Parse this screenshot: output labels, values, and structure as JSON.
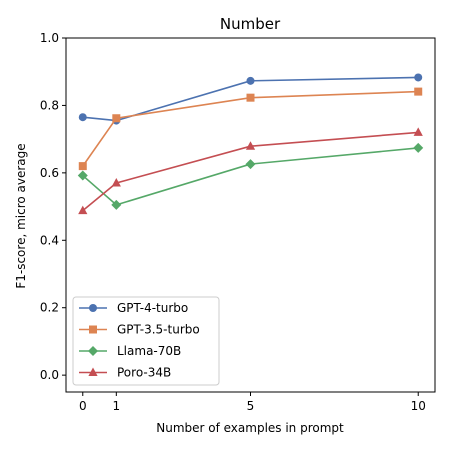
{
  "chart_data": {
    "type": "line",
    "title": "Number",
    "xlabel": "Number of examples in prompt",
    "ylabel": "F1-score, micro average",
    "x": [
      0,
      1,
      5,
      10
    ],
    "xticks": [
      "0",
      "1",
      "5",
      "10"
    ],
    "xlim": [
      -0.5,
      10.5
    ],
    "ylim": [
      -0.05,
      1.0
    ],
    "yticks": [
      "0.0",
      "0.2",
      "0.4",
      "0.6",
      "0.8",
      "1.0"
    ],
    "grid": false,
    "legend_position": "lower-left",
    "series": [
      {
        "name": "GPT-4-turbo",
        "values": [
          0.765,
          0.755,
          0.873,
          0.883
        ],
        "color": "#4c72b0",
        "marker": "circle"
      },
      {
        "name": "GPT-3.5-turbo",
        "values": [
          0.62,
          0.762,
          0.823,
          0.841
        ],
        "color": "#dd8452",
        "marker": "square"
      },
      {
        "name": "Llama-70B",
        "values": [
          0.592,
          0.505,
          0.626,
          0.674
        ],
        "color": "#55a868",
        "marker": "diamond"
      },
      {
        "name": "Poro-34B",
        "values": [
          0.488,
          0.57,
          0.679,
          0.72
        ],
        "color": "#c44e52",
        "marker": "triangle"
      }
    ]
  }
}
